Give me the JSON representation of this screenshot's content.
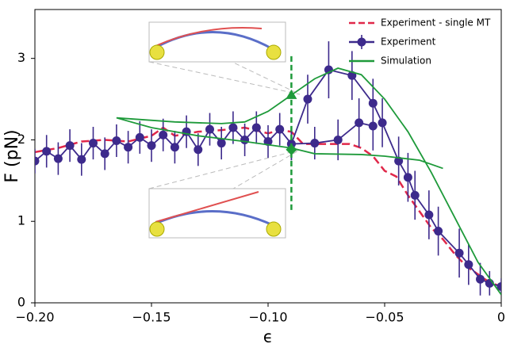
{
  "chart_data": {
    "type": "line",
    "xlabel": "ϵ",
    "ylabel": "F (pN)",
    "xlim": [
      -0.2,
      0
    ],
    "ylim": [
      0,
      3.6
    ],
    "xticks": [
      {
        "value": -0.2,
        "label": "−0.20"
      },
      {
        "value": -0.15,
        "label": "−0.15"
      },
      {
        "value": -0.1,
        "label": "−0.10"
      },
      {
        "value": -0.05,
        "label": "−0.05"
      },
      0
    ],
    "yticks": [
      0,
      1,
      2,
      3
    ],
    "legend": "upper right",
    "series": [
      {
        "name": "Experiment - single MT",
        "color": "#e0284a",
        "style": "dashed",
        "x": [
          -0.2,
          -0.19,
          -0.18,
          -0.17,
          -0.16,
          -0.15,
          -0.145,
          -0.14,
          -0.13,
          -0.12,
          -0.11,
          -0.1,
          -0.095,
          -0.09,
          -0.085,
          -0.075,
          -0.065,
          -0.06,
          -0.055,
          -0.05,
          -0.045,
          -0.04,
          -0.035,
          -0.03,
          -0.025,
          -0.02,
          -0.015,
          -0.01,
          -0.005,
          0
        ],
        "values": [
          1.85,
          1.9,
          1.98,
          2.0,
          1.98,
          2.05,
          2.15,
          2.05,
          2.1,
          2.12,
          2.15,
          2.08,
          2.12,
          2.1,
          1.95,
          1.95,
          1.95,
          1.9,
          1.8,
          1.62,
          1.55,
          1.32,
          1.12,
          0.92,
          0.78,
          0.6,
          0.45,
          0.35,
          0.25,
          0.2
        ]
      },
      {
        "name": "Experiment",
        "color": "#3d2a8c",
        "style": "markers",
        "x": [
          -0.2,
          -0.195,
          -0.19,
          -0.185,
          -0.18,
          -0.175,
          -0.17,
          -0.165,
          -0.16,
          -0.155,
          -0.15,
          -0.145,
          -0.14,
          -0.135,
          -0.13,
          -0.125,
          -0.12,
          -0.115,
          -0.11,
          -0.105,
          -0.1,
          -0.095,
          -0.09,
          -0.083,
          -0.074,
          -0.064,
          -0.055,
          -0.051,
          -0.044,
          -0.04,
          -0.037,
          -0.031,
          -0.027,
          -0.018,
          -0.014,
          -0.009,
          -0.005,
          0,
          null,
          -0.09,
          -0.08,
          -0.07,
          -0.061,
          -0.055
        ],
        "values": [
          1.74,
          1.86,
          1.77,
          1.93,
          1.76,
          1.96,
          1.83,
          1.99,
          1.91,
          2.03,
          1.93,
          2.06,
          1.91,
          2.1,
          1.88,
          2.13,
          1.96,
          2.15,
          2.0,
          2.15,
          1.98,
          2.13,
          1.95,
          2.5,
          2.86,
          2.79,
          2.45,
          2.21,
          1.74,
          1.54,
          1.32,
          1.08,
          0.88,
          0.61,
          0.47,
          0.29,
          0.24,
          0.2,
          null,
          1.95,
          1.96,
          2.0,
          2.21,
          2.17
        ],
        "errors": [
          0.15,
          0.2,
          0.2,
          0.2,
          0.2,
          0.2,
          0.2,
          0.2,
          0.2,
          0.2,
          0.2,
          0.2,
          0.2,
          0.2,
          0.2,
          0.2,
          0.2,
          0.2,
          0.2,
          0.2,
          0.2,
          0.2,
          0.2,
          0.3,
          0.35,
          0.3,
          0.3,
          0.3,
          0.3,
          0.3,
          0.3,
          0.3,
          0.3,
          0.3,
          0.25,
          0.2,
          0.15,
          0.1,
          null,
          0.2,
          0.2,
          0.25,
          0.3,
          0.3
        ]
      },
      {
        "name": "Simulation",
        "color": "#1e9a3a",
        "style": "solid",
        "x": [
          -0.025,
          -0.035,
          -0.05,
          -0.06,
          -0.08,
          -0.09,
          -0.11,
          -0.13,
          -0.15,
          -0.165,
          -0.14,
          -0.12,
          -0.11,
          -0.1,
          -0.09,
          -0.08,
          -0.07,
          -0.06,
          -0.05,
          -0.04,
          -0.03,
          -0.02,
          -0.01,
          0
        ],
        "values": [
          1.65,
          1.75,
          1.8,
          1.82,
          1.83,
          1.9,
          1.98,
          2.05,
          2.15,
          2.27,
          2.22,
          2.2,
          2.22,
          2.35,
          2.55,
          2.75,
          2.88,
          2.8,
          2.5,
          2.1,
          1.6,
          1.05,
          0.5,
          0.1
        ]
      }
    ],
    "markers": {
      "x": -0.09,
      "triangle": 2.55,
      "diamond": 1.88,
      "line": [
        1.14,
        3.03
      ],
      "color": "#1e9a3a"
    }
  }
}
